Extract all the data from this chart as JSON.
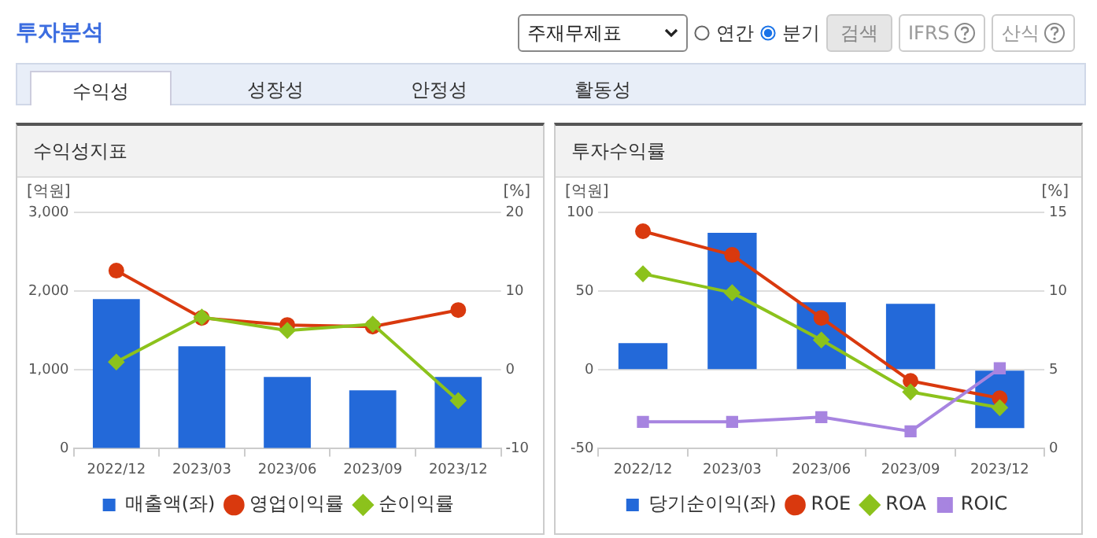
{
  "chart_data": [
    {
      "type": "other",
      "title": "투자분석",
      "annotations": [
        "주재무제표",
        "연간",
        "분기",
        "검색",
        "IFRS",
        "산식",
        "수익성",
        "성장성",
        "안정성",
        "활동성"
      ]
    },
    {
      "type": "bar",
      "title": "수익성지표",
      "ylabel": "[억원]",
      "y2label": "[%]",
      "categories": [
        "2022/12",
        "2023/03",
        "2023/06",
        "2023/09",
        "2023/12"
      ],
      "ylim": [
        0,
        3000
      ],
      "yticks": [
        0,
        {
          "value": 1000,
          "label": "1,000"
        },
        {
          "value": 2000,
          "label": "2,000"
        },
        {
          "value": 3000,
          "label": "3,000"
        }
      ],
      "y2lim": [
        -10,
        20
      ],
      "y2ticks": [
        -10,
        0,
        10,
        20
      ],
      "grid": "y",
      "legend": "bottom",
      "series": [
        {
          "name": "매출액(좌)",
          "type": "bar",
          "color": "#2369d9",
          "values": [
            1900,
            1300,
            910,
            740,
            910
          ]
        },
        {
          "name": "영업이익률",
          "type": "line",
          "axis": "y2",
          "color": "#d9390e",
          "marker": "circle",
          "values": [
            12.6,
            6.6,
            5.7,
            5.5,
            7.6
          ]
        },
        {
          "name": "순이익률",
          "type": "line",
          "axis": "y2",
          "color": "#8cc21c",
          "marker": "diamond",
          "values": [
            1.0,
            6.7,
            5.0,
            5.8,
            -3.9
          ]
        }
      ]
    },
    {
      "type": "bar",
      "title": "투자수익률",
      "ylabel": "[억원]",
      "y2label": "[%]",
      "categories": [
        "2022/12",
        "2023/03",
        "2023/06",
        "2023/09",
        "2023/12"
      ],
      "ylim": [
        -50,
        100
      ],
      "yticks": [
        -50,
        0,
        50,
        100
      ],
      "y2lim": [
        0,
        15
      ],
      "y2ticks": [
        0,
        5,
        10,
        15
      ],
      "grid": "y",
      "legend": "bottom",
      "series": [
        {
          "name": "당기순이익(좌)",
          "type": "bar",
          "color": "#2369d9",
          "values": [
            17,
            87,
            43,
            42,
            -37
          ]
        },
        {
          "name": "ROE",
          "type": "line",
          "axis": "y2",
          "color": "#d9390e",
          "marker": "circle",
          "values": [
            13.8,
            12.3,
            8.3,
            4.3,
            3.2
          ]
        },
        {
          "name": "ROA",
          "type": "line",
          "axis": "y2",
          "color": "#8cc21c",
          "marker": "diamond",
          "values": [
            11.1,
            9.9,
            6.9,
            3.6,
            2.6
          ]
        },
        {
          "name": "ROIC",
          "type": "line",
          "axis": "y2",
          "color": "#a784e0",
          "marker": "square",
          "values": [
            1.7,
            1.7,
            2.0,
            1.1,
            5.1
          ]
        }
      ]
    }
  ]
}
